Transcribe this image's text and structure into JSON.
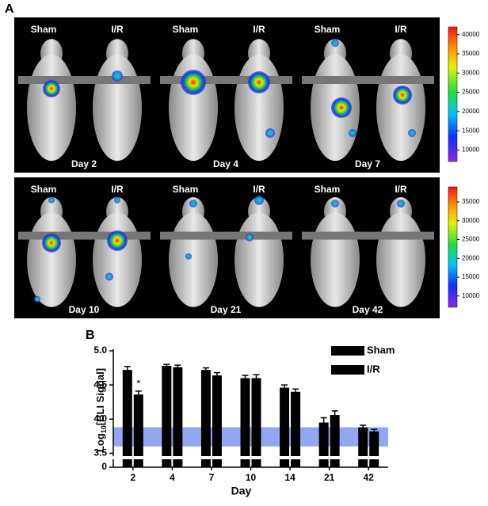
{
  "panel_a": {
    "label": "A",
    "rows": [
      {
        "panels": [
          {
            "left": "Sham",
            "right": "I/R",
            "day": "Day 2"
          },
          {
            "left": "Sham",
            "right": "I/R",
            "day": "Day 4"
          },
          {
            "left": "Sham",
            "right": "I/R",
            "day": "Day 7"
          }
        ],
        "colorbar": {
          "ticks": [
            10000,
            15000,
            20000,
            25000,
            30000,
            35000,
            40000
          ],
          "range": [
            7000,
            42000
          ]
        }
      },
      {
        "panels": [
          {
            "left": "Sham",
            "right": "I/R",
            "day": "Day 10"
          },
          {
            "left": "Sham",
            "right": "I/R",
            "day": "Day 21"
          },
          {
            "left": "Sham",
            "right": "I/R",
            "day": "Day 42"
          }
        ],
        "colorbar": {
          "ticks": [
            10000,
            15000,
            20000,
            25000,
            30000,
            35000
          ],
          "range": [
            7000,
            39000
          ]
        }
      }
    ]
  },
  "chart_data": {
    "type": "bar",
    "panel_label": "B",
    "y_label": [
      "Log",
      "10",
      "[BLI Signal]"
    ],
    "x_label": "Day",
    "categories": [
      "2",
      "4",
      "7",
      "10",
      "14",
      "21",
      "42"
    ],
    "series": [
      {
        "name": "Sham",
        "color": "#000000",
        "values": [
          4.72,
          4.78,
          4.72,
          4.6,
          4.46,
          3.95,
          3.88
        ],
        "errors": [
          0.05,
          0.02,
          0.03,
          0.04,
          0.04,
          0.07,
          0.03
        ]
      },
      {
        "name": "I/R",
        "color": "#000000",
        "values": [
          4.36,
          4.76,
          4.64,
          4.6,
          4.4,
          4.06,
          3.82
        ],
        "errors": [
          0.05,
          0.03,
          0.04,
          0.05,
          0.04,
          0.06,
          0.03
        ]
      }
    ],
    "annotation": "*",
    "shaded_range": [
      3.6,
      3.88
    ],
    "ylim": [
      0,
      5
    ],
    "y_break": [
      0,
      3.4
    ],
    "yticks": [
      0,
      3.5,
      {
        "value": 4,
        "label": "4.0"
      },
      4.5,
      {
        "value": 5,
        "label": "5.0"
      }
    ]
  }
}
